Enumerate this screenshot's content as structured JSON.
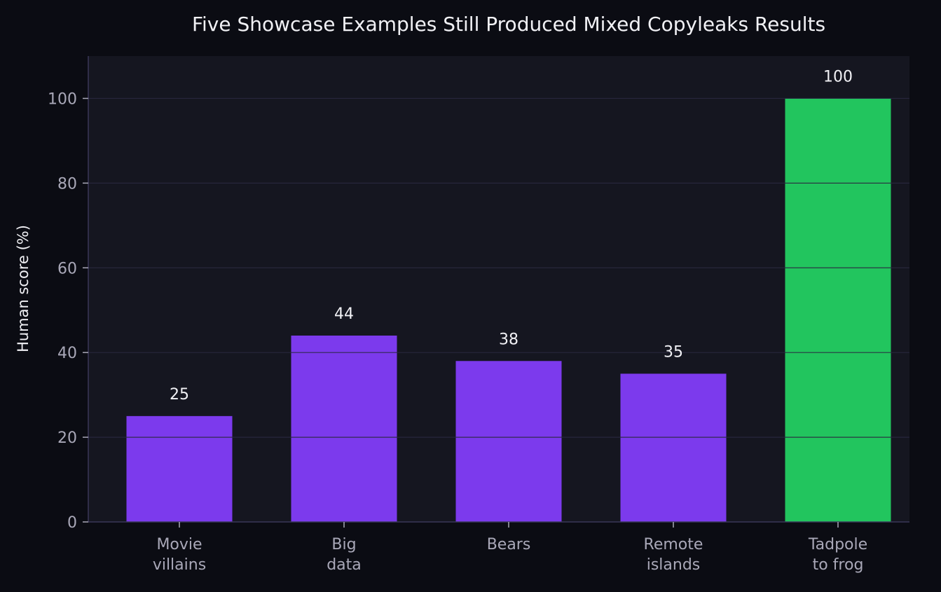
{
  "chart_data": {
    "type": "bar",
    "title": "Five Showcase Examples Still Produced Mixed Copyleaks Results",
    "xlabel": "",
    "ylabel": "Human score (%)",
    "categories": [
      [
        "Movie",
        "villains"
      ],
      [
        "Big",
        "data"
      ],
      [
        "Bears"
      ],
      [
        "Remote",
        "islands"
      ],
      [
        "Tadpole",
        "to frog"
      ]
    ],
    "values": [
      25,
      44,
      38,
      35,
      100
    ],
    "value_labels": [
      "25",
      "44",
      "38",
      "35",
      "100"
    ],
    "bar_colors": [
      "#7c3aed",
      "#7c3aed",
      "#7c3aed",
      "#7c3aed",
      "#22c55e"
    ],
    "ylim": [
      0,
      110
    ],
    "yticks": [
      0,
      20,
      40,
      60,
      80,
      100
    ],
    "grid": true,
    "colors": {
      "background": "#0b0c13",
      "plot_background": "#151620",
      "grid": "#2a2840",
      "text": "#f1f1f5",
      "tick_text": "#a9a8b8"
    }
  }
}
